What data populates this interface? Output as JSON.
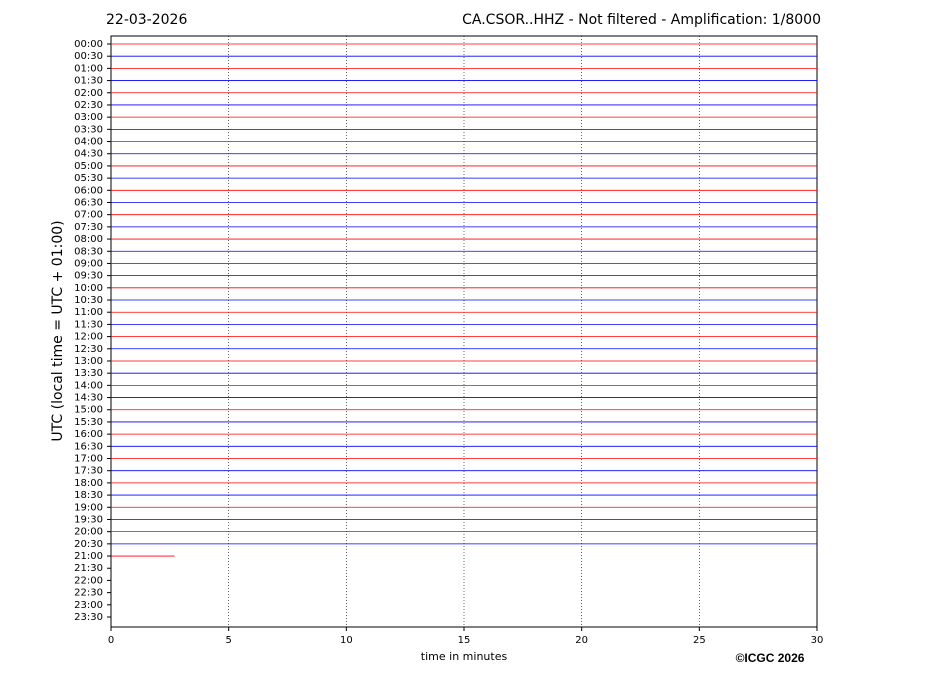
{
  "chart_data": {
    "type": "helicorder",
    "date": "22-03-2026",
    "title": "CA.CSOR..HHZ - Not filtered - Amplification: 1/8000",
    "y_label": "UTC (local time = UTC + 01:00)",
    "x_label": "time in minutes",
    "credit": "©ICGC 2026",
    "categories": [
      "00:00",
      "00:30",
      "01:00",
      "01:30",
      "02:00",
      "02:30",
      "03:00",
      "03:30",
      "04:00",
      "04:30",
      "05:00",
      "05:30",
      "06:00",
      "06:30",
      "07:00",
      "07:30",
      "08:00",
      "08:30",
      "09:00",
      "09:30",
      "10:00",
      "10:30",
      "11:00",
      "11:30",
      "12:00",
      "12:30",
      "13:00",
      "13:30",
      "14:00",
      "14:30",
      "15:00",
      "15:30",
      "16:00",
      "16:30",
      "17:00",
      "17:30",
      "18:00",
      "18:30",
      "19:00",
      "19:30",
      "20:00",
      "20:30",
      "21:00",
      "21:30",
      "22:00",
      "22:30",
      "23:00",
      "23:30"
    ],
    "values": [
      30,
      30,
      30,
      30,
      30,
      30,
      30,
      30,
      30,
      30,
      30,
      30,
      30,
      30,
      30,
      30,
      30,
      30,
      30,
      30,
      30,
      30,
      30,
      30,
      30,
      30,
      30,
      30,
      30,
      30,
      30,
      30,
      30,
      30,
      30,
      30,
      30,
      30,
      30,
      30,
      30,
      30,
      2.7,
      null,
      null,
      null,
      null,
      null
    ],
    "colors": [
      "#ff0000",
      "#0000ff"
    ],
    "xlim": [
      0,
      30
    ],
    "xticks": [
      0,
      5,
      10,
      15,
      20,
      25,
      30
    ],
    "grid": true
  }
}
